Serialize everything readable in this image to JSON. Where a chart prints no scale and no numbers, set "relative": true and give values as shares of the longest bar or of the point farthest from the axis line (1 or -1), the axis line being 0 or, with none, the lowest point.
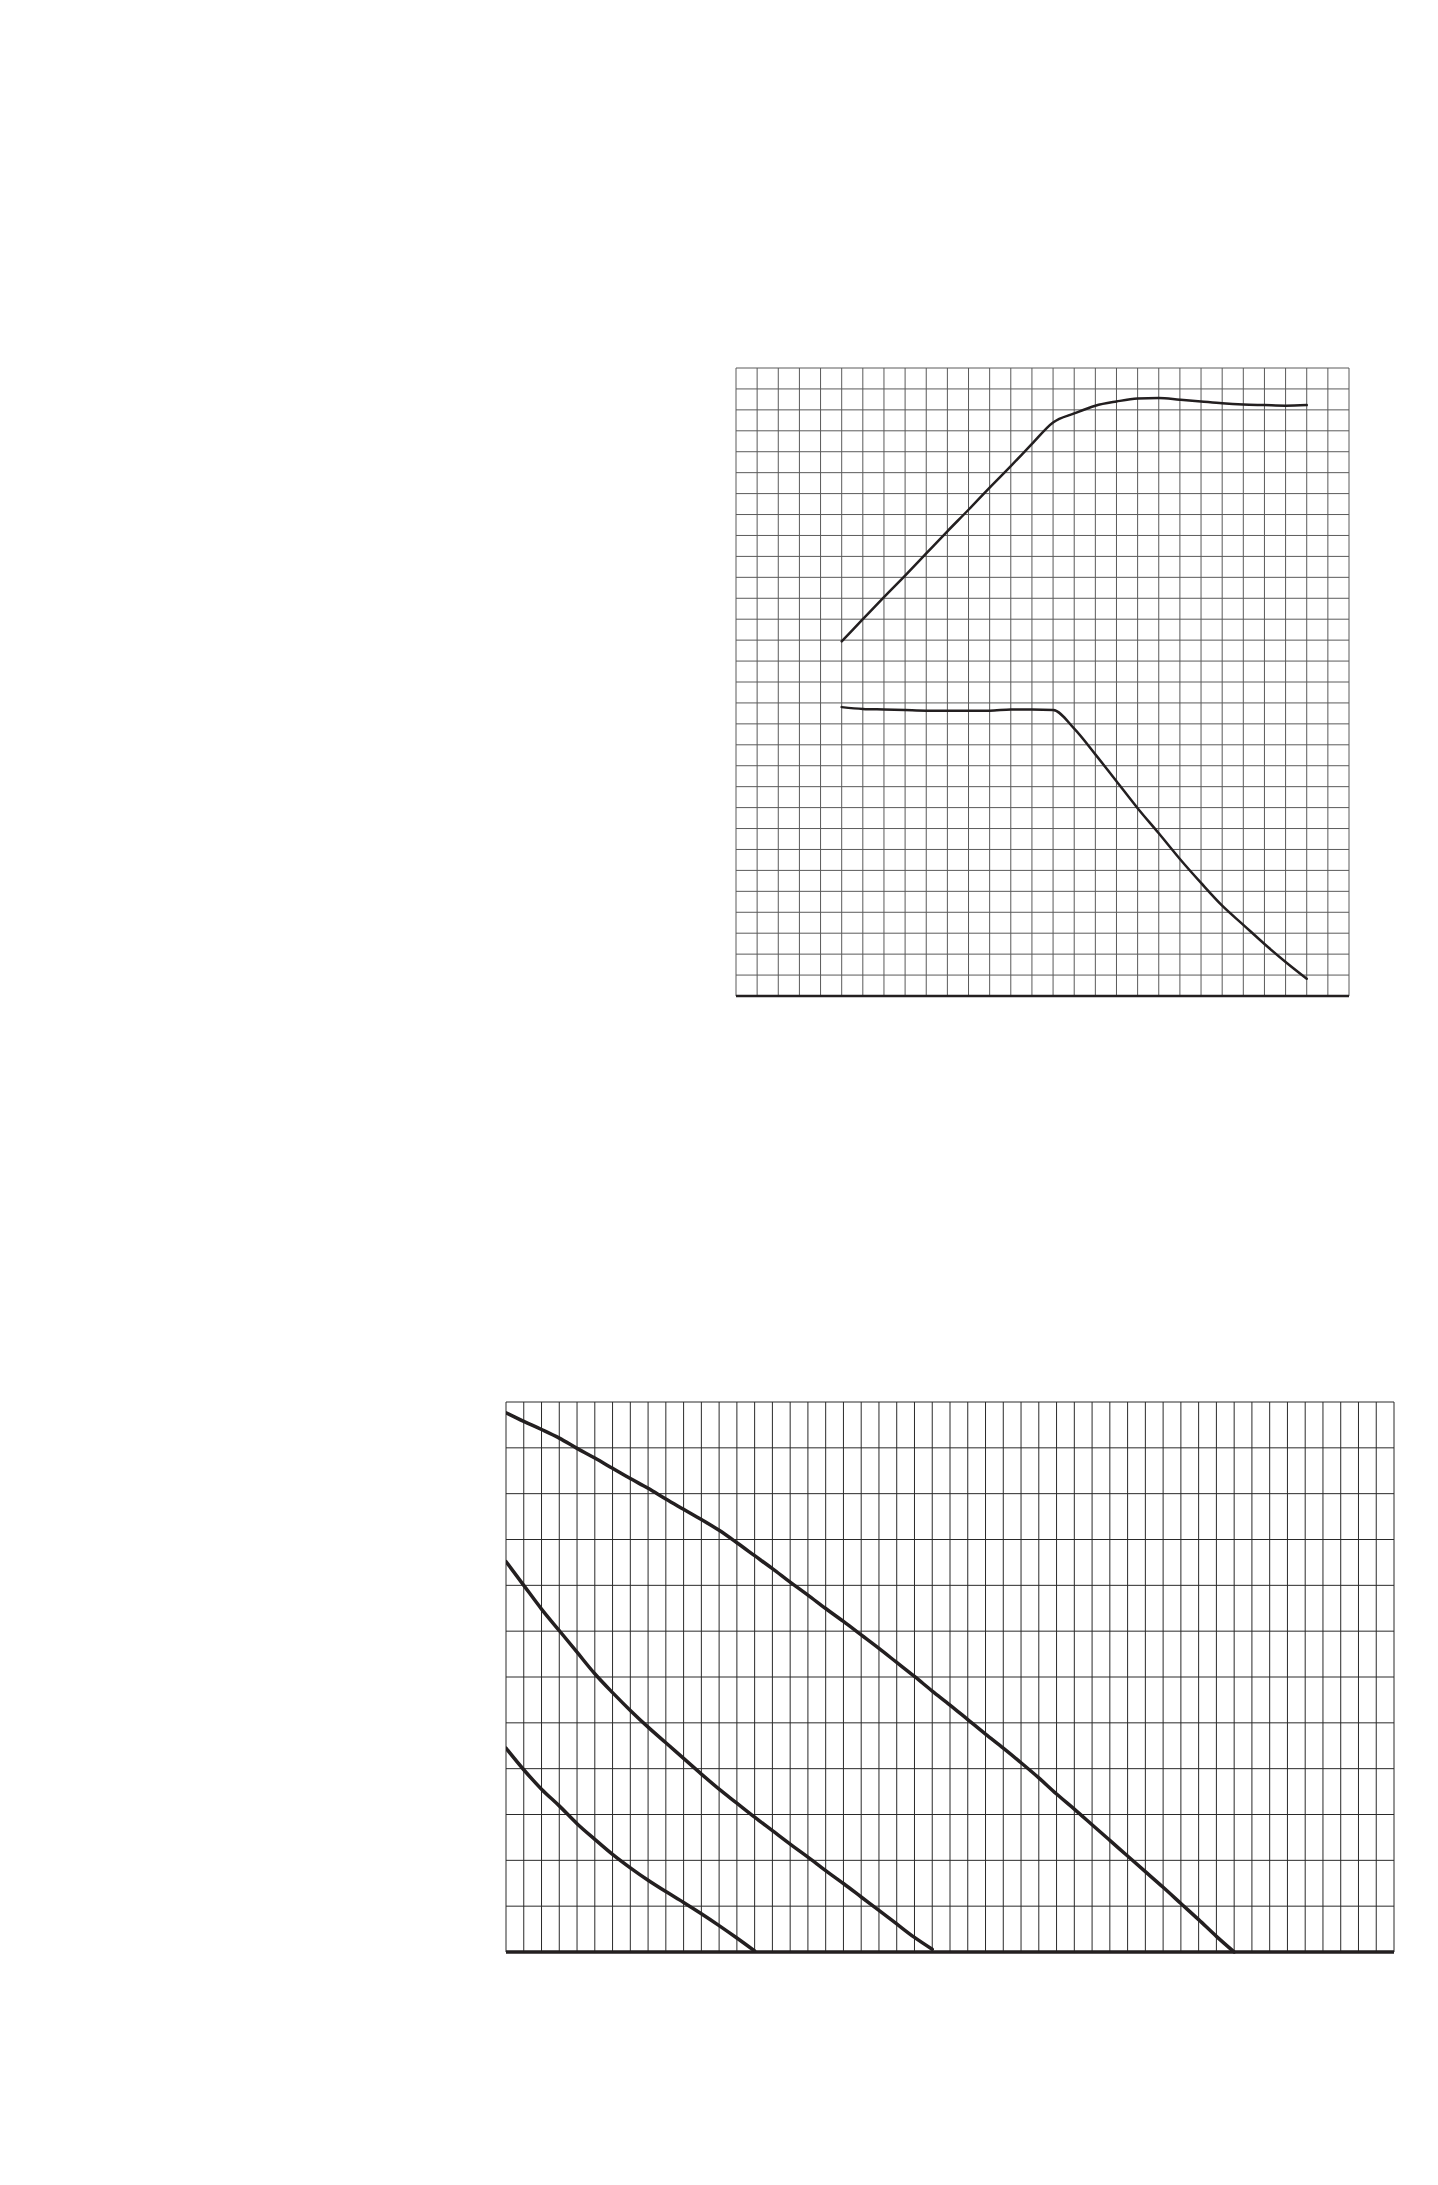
{
  "chart_data": [
    {
      "type": "line",
      "relative": true,
      "grid": true,
      "categories": [
        null,
        null,
        null,
        null,
        null,
        null,
        null,
        null,
        null,
        null,
        null,
        null,
        null,
        null,
        null,
        null,
        null,
        null,
        null,
        null,
        null,
        null,
        null,
        null,
        null,
        null,
        null,
        null,
        null,
        null
      ],
      "series": [
        {
          "color": "#231f20",
          "values": [
            null,
            null,
            null,
            null,
            null,
            0.593,
            0.63,
            0.667,
            0.703,
            0.74,
            0.777,
            0.813,
            0.85,
            0.886,
            0.923,
            0.959,
            0.974,
            0.987,
            0.994,
            0.999,
            1,
            0.997,
            0.994,
            0.991,
            0.989,
            0.988,
            0.987,
            0.988,
            null,
            null
          ]
        },
        {
          "color": "#231f20",
          "values": [
            null,
            null,
            null,
            null,
            null,
            0.483,
            0.48,
            0.479,
            0.478,
            0.477,
            0.477,
            0.477,
            0.477,
            0.479,
            0.479,
            0.478,
            0.447,
            0.404,
            0.359,
            0.314,
            0.272,
            0.229,
            0.189,
            0.151,
            0.119,
            0.087,
            0.057,
            0.029,
            null,
            null
          ]
        }
      ]
    },
    {
      "type": "line",
      "relative": true,
      "grid": true,
      "categories": [
        null,
        null,
        null,
        null,
        null,
        null,
        null,
        null,
        null,
        null,
        null,
        null,
        null,
        null,
        null,
        null,
        null,
        null,
        null,
        null,
        null,
        null,
        null,
        null,
        null,
        null,
        null,
        null,
        null,
        null,
        null,
        null,
        null,
        null,
        null,
        null,
        null,
        null,
        null,
        null,
        null,
        null,
        null,
        null,
        null,
        null,
        null,
        null,
        null,
        null,
        null
      ],
      "series": [
        {
          "color": "#231f20",
          "values": [
            1,
            0.984,
            0.969,
            0.953,
            0.934,
            0.916,
            0.897,
            0.878,
            0.86,
            0.84,
            0.821,
            0.802,
            0.782,
            0.759,
            0.735,
            0.711,
            0.686,
            0.662,
            0.637,
            0.613,
            0.588,
            0.563,
            0.537,
            0.511,
            0.484,
            0.458,
            0.431,
            0.404,
            0.378,
            0.351,
            0.323,
            0.293,
            0.265,
            0.236,
            0.207,
            0.178,
            0.149,
            0.12,
            0.09,
            0.06,
            0.029,
            0,
            null,
            null,
            null,
            null,
            null,
            null,
            null,
            null,
            null
          ]
        },
        {
          "color": "#231f20",
          "values": [
            0.724,
            0.68,
            0.636,
            0.596,
            0.556,
            0.516,
            0.481,
            0.448,
            0.417,
            0.388,
            0.359,
            0.33,
            0.302,
            0.276,
            0.25,
            0.225,
            0.2,
            0.176,
            0.151,
            0.127,
            0.102,
            0.077,
            0.052,
            0.027,
            0.005,
            null,
            null,
            null,
            null,
            null,
            null,
            null,
            null,
            null,
            null,
            null,
            null,
            null,
            null,
            null,
            null,
            null,
            null,
            null,
            null,
            null,
            null,
            null,
            null,
            null,
            null
          ]
        },
        {
          "color": "#231f20",
          "values": [
            0.378,
            0.338,
            0.302,
            0.271,
            0.238,
            0.209,
            0.181,
            0.156,
            0.133,
            0.112,
            0.092,
            0.071,
            0.049,
            0.026,
            0.002,
            null,
            null,
            null,
            null,
            null,
            null,
            null,
            null,
            null,
            null,
            null,
            null,
            null,
            null,
            null,
            null,
            null,
            null,
            null,
            null,
            null,
            null,
            null,
            null,
            null,
            null,
            null,
            null,
            null,
            null,
            null,
            null,
            null,
            null,
            null,
            null
          ]
        }
      ]
    }
  ]
}
